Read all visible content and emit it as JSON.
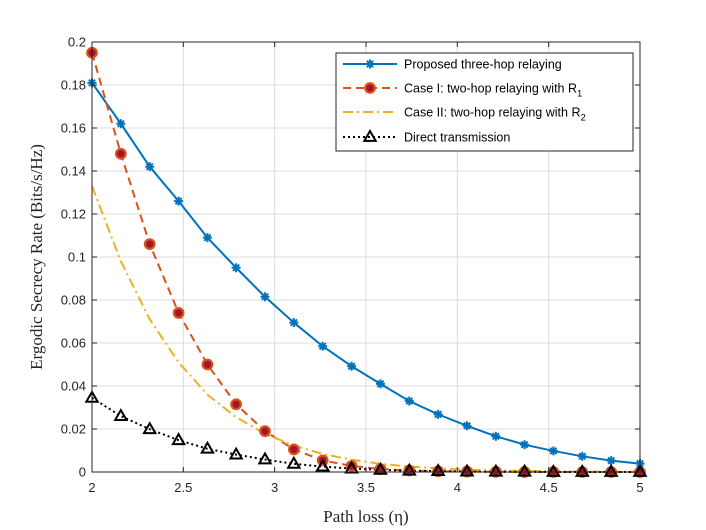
{
  "chart_data": {
    "type": "line",
    "xlabel": "Path loss (η)",
    "ylabel": "Ergodic Secrecy Rate (Bits/s/Hz)",
    "xlim": [
      2,
      5
    ],
    "ylim": [
      0,
      0.2
    ],
    "xticks": [
      2,
      2.5,
      3,
      3.5,
      4,
      4.5,
      5
    ],
    "xtick_labels": [
      "2",
      "2.5",
      "3",
      "3.5",
      "4",
      "4.5",
      "5"
    ],
    "yticks": [
      0,
      0.02,
      0.04,
      0.06,
      0.08,
      0.1,
      0.12,
      0.14,
      0.16,
      0.18,
      0.2
    ],
    "ytick_labels": [
      "0",
      "0.02",
      "0.04",
      "0.06",
      "0.08",
      "0.1",
      "0.12",
      "0.14",
      "0.16",
      "0.18",
      "0.2"
    ],
    "grid": true,
    "legend_position": "top-right",
    "series": [
      {
        "name": "Proposed three-hop relaying",
        "color": "#0072BD",
        "line_style": "solid",
        "marker": "asterisk",
        "x": [
          2.0,
          2.158,
          2.316,
          2.474,
          2.632,
          2.789,
          2.947,
          3.105,
          3.263,
          3.421,
          3.579,
          3.737,
          3.895,
          4.053,
          4.211,
          4.368,
          4.526,
          4.684,
          4.842,
          5.0
        ],
        "values": [
          0.181,
          0.162,
          0.142,
          0.126,
          0.109,
          0.095,
          0.0815,
          0.0695,
          0.0585,
          0.0492,
          0.041,
          0.033,
          0.0268,
          0.0215,
          0.0166,
          0.0127,
          0.0098,
          0.0073,
          0.0053,
          0.0039
        ]
      },
      {
        "name": "Case I:  two-hop relaying with R",
        "name_subscript": "1",
        "color": "#D95319",
        "marker_fill": "#A2142F",
        "line_style": "dashed",
        "marker": "circle",
        "x": [
          2.0,
          2.158,
          2.316,
          2.474,
          2.632,
          2.789,
          2.947,
          3.105,
          3.263,
          3.421,
          3.579,
          3.737,
          3.895,
          4.053,
          4.211,
          4.368,
          4.526,
          4.684,
          4.842,
          5.0
        ],
        "values": [
          0.195,
          0.148,
          0.106,
          0.074,
          0.05,
          0.0315,
          0.019,
          0.0105,
          0.0054,
          0.0028,
          0.0014,
          0.0007,
          0.0003,
          0.0002,
          0.0001,
          0.0,
          0.0,
          0.0,
          0.0,
          0.0
        ]
      },
      {
        "name": "Case II: two-hop relaying with R",
        "name_subscript": "2",
        "color": "#EDB120",
        "line_style": "dashdot",
        "marker": "none",
        "x": [
          2.0,
          2.158,
          2.316,
          2.474,
          2.632,
          2.789,
          2.947,
          3.105,
          3.263,
          3.421,
          3.579,
          3.737,
          3.895,
          4.053,
          4.211,
          4.368,
          4.526,
          4.684,
          4.842,
          5.0
        ],
        "values": [
          0.133,
          0.098,
          0.071,
          0.051,
          0.036,
          0.0255,
          0.0178,
          0.0123,
          0.0084,
          0.0057,
          0.0038,
          0.0025,
          0.0017,
          0.0011,
          0.0007,
          0.0005,
          0.0003,
          0.0002,
          0.0001,
          0.0001
        ]
      },
      {
        "name": "Direct transmission",
        "color": "#000000",
        "line_style": "dotted",
        "marker": "triangle",
        "x": [
          2.0,
          2.158,
          2.316,
          2.474,
          2.632,
          2.789,
          2.947,
          3.105,
          3.263,
          3.421,
          3.579,
          3.737,
          3.895,
          4.053,
          4.211,
          4.368,
          4.526,
          4.684,
          4.842,
          5.0
        ],
        "values": [
          0.0345,
          0.026,
          0.0199,
          0.0148,
          0.0108,
          0.0081,
          0.0058,
          0.0038,
          0.0025,
          0.0016,
          0.001,
          0.0006,
          0.0004,
          0.0002,
          0.0001,
          0.0001,
          0.0,
          0.0,
          0.0,
          0.0
        ]
      }
    ]
  }
}
